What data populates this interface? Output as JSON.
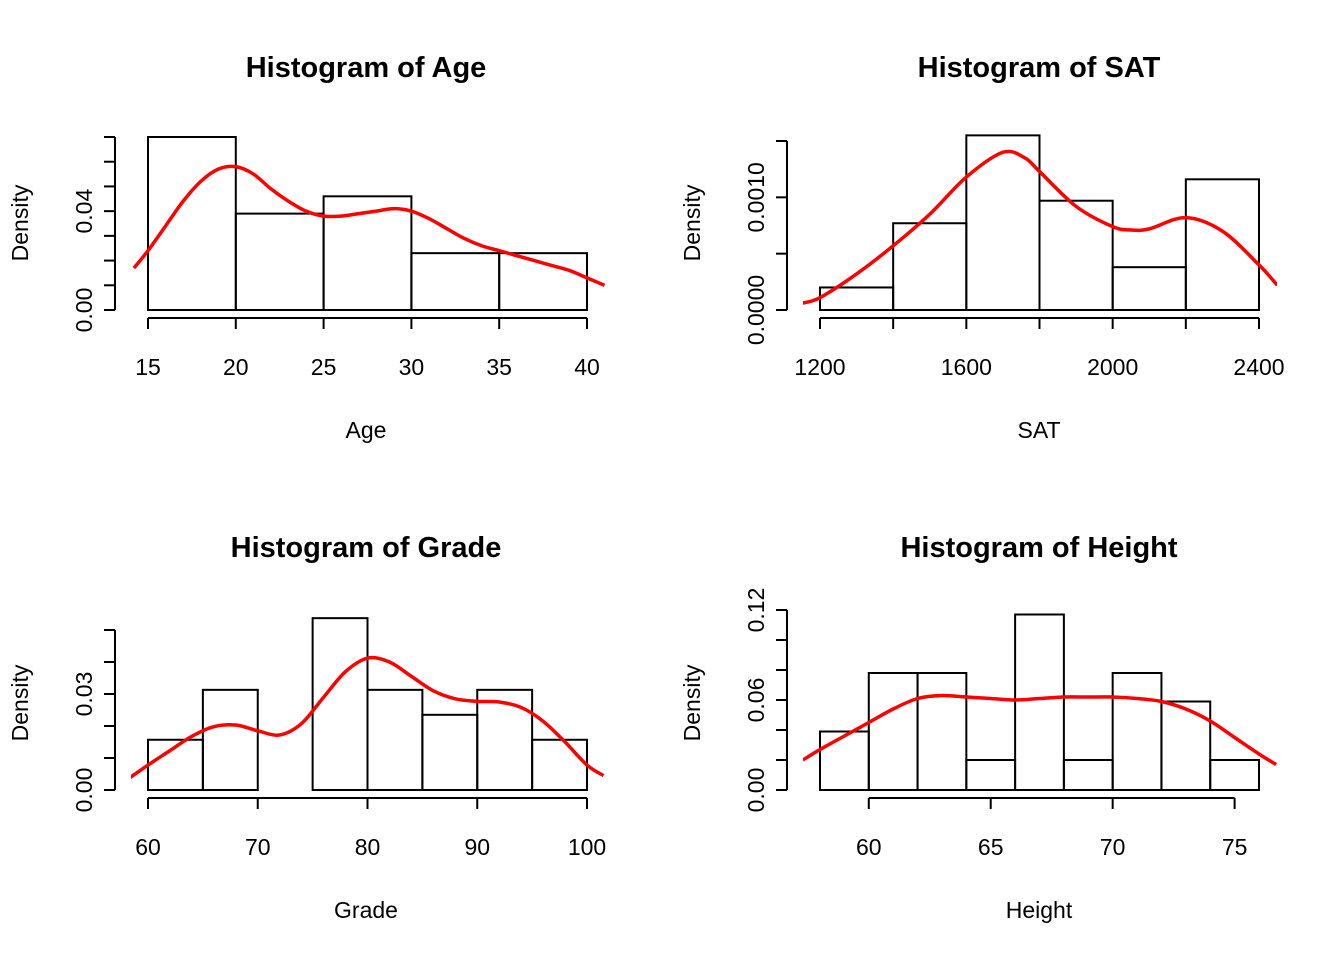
{
  "colors": {
    "density_curve": "#ff0000",
    "bars": "#000000",
    "background": "#ffffff"
  },
  "chart_data": [
    {
      "type": "bar",
      "subtype": "histogram-with-density",
      "title": "Histogram of Age",
      "xlabel": "Age",
      "ylabel": "Density",
      "bins": [
        [
          15,
          20
        ],
        [
          20,
          25
        ],
        [
          25,
          30
        ],
        [
          30,
          35
        ],
        [
          35,
          40
        ]
      ],
      "values": [
        0.07,
        0.039,
        0.046,
        0.023,
        0.023
      ],
      "xticks": [
        15,
        20,
        25,
        30,
        35,
        40
      ],
      "yticks": [
        0,
        0.01,
        0.02,
        0.03,
        0.04,
        0.05,
        0.06,
        0.07
      ],
      "ytick_labels": {
        "0": "0.00",
        "0.04": "0.04"
      },
      "xlim": [
        15,
        40
      ],
      "ylim": [
        0,
        0.07
      ],
      "density_curve": {
        "x": [
          14.2,
          15,
          16,
          17,
          18,
          19,
          20,
          21,
          22,
          23,
          24,
          25,
          26,
          27,
          28,
          29,
          30,
          31,
          32,
          33,
          34,
          35,
          36,
          37,
          38,
          39,
          40,
          41
        ],
        "y": [
          0.017,
          0.024,
          0.034,
          0.044,
          0.052,
          0.057,
          0.058,
          0.055,
          0.049,
          0.044,
          0.04,
          0.038,
          0.038,
          0.039,
          0.04,
          0.041,
          0.04,
          0.037,
          0.033,
          0.029,
          0.026,
          0.024,
          0.022,
          0.02,
          0.018,
          0.016,
          0.013,
          0.01
        ]
      }
    },
    {
      "type": "bar",
      "subtype": "histogram-with-density",
      "title": "Histogram of SAT",
      "xlabel": "SAT",
      "ylabel": "Density",
      "bins": [
        [
          1200,
          1400
        ],
        [
          1400,
          1600
        ],
        [
          1600,
          1800
        ],
        [
          1800,
          2000
        ],
        [
          2000,
          2200
        ],
        [
          2200,
          2400
        ]
      ],
      "values": [
        0.0002,
        0.00077,
        0.00155,
        0.00097,
        0.00038,
        0.00116
      ],
      "xticks": [
        1200,
        1400,
        1600,
        1800,
        2000,
        2200,
        2400
      ],
      "xtick_labels": {
        "1200": "1200",
        "1600": "1600",
        "2000": "2000",
        "2400": "2400"
      },
      "yticks": [
        0,
        0.0005,
        0.001,
        0.0015
      ],
      "ytick_labels": {
        "0": "0.0000",
        "0.001": "0.0010"
      },
      "xlim": [
        1200,
        2400
      ],
      "ylim": [
        0,
        0.0015
      ],
      "density_curve": {
        "x": [
          1150,
          1200,
          1300,
          1400,
          1500,
          1600,
          1700,
          1760,
          1800,
          1900,
          2000,
          2050,
          2100,
          2200,
          2300,
          2400,
          2450
        ],
        "y": [
          6e-05,
          0.00011,
          0.00032,
          0.00057,
          0.00085,
          0.00118,
          0.0014,
          0.00135,
          0.00123,
          0.00092,
          0.00074,
          0.00071,
          0.00072,
          0.00082,
          0.0007,
          0.0004,
          0.00022
        ]
      }
    },
    {
      "type": "bar",
      "subtype": "histogram-with-density",
      "title": "Histogram of Grade",
      "xlabel": "Grade",
      "ylabel": "Density",
      "bins": [
        [
          60,
          65
        ],
        [
          65,
          70
        ],
        [
          70,
          75
        ],
        [
          75,
          80
        ],
        [
          80,
          85
        ],
        [
          85,
          90
        ],
        [
          90,
          95
        ],
        [
          95,
          100
        ]
      ],
      "values": [
        0.0157,
        0.0313,
        0,
        0.0537,
        0.0313,
        0.0235,
        0.0313,
        0.0157
      ],
      "xticks": [
        60,
        70,
        80,
        90,
        100
      ],
      "yticks": [
        0,
        0.01,
        0.02,
        0.03,
        0.04,
        0.05
      ],
      "ytick_labels": {
        "0": "0.00",
        "0.03": "0.03"
      },
      "xlim": [
        60,
        100
      ],
      "ylim": [
        0,
        0.05
      ],
      "density_curve": {
        "x": [
          58.2,
          60,
          62,
          64,
          66,
          68,
          70,
          72,
          74,
          76,
          78,
          80,
          82,
          84,
          86,
          88,
          90,
          92,
          94,
          96,
          98,
          100,
          101.5
        ],
        "y": [
          0.0035,
          0.0078,
          0.0123,
          0.0168,
          0.0198,
          0.0203,
          0.0185,
          0.0172,
          0.0208,
          0.029,
          0.037,
          0.0412,
          0.04,
          0.0355,
          0.031,
          0.0285,
          0.0277,
          0.0275,
          0.0258,
          0.0215,
          0.015,
          0.0078,
          0.0045
        ]
      }
    },
    {
      "type": "bar",
      "subtype": "histogram-with-density",
      "title": "Histogram of Height",
      "xlabel": "Height",
      "ylabel": "Density",
      "bins": [
        [
          58,
          60
        ],
        [
          60,
          62
        ],
        [
          62,
          64
        ],
        [
          64,
          66
        ],
        [
          66,
          68
        ],
        [
          68,
          70
        ],
        [
          70,
          72
        ],
        [
          72,
          74
        ],
        [
          74,
          76
        ]
      ],
      "values": [
        0.039,
        0.078,
        0.078,
        0.02,
        0.117,
        0.02,
        0.078,
        0.059,
        0.02
      ],
      "xticks": [
        60,
        65,
        70,
        75
      ],
      "yticks": [
        0,
        0.02,
        0.04,
        0.06,
        0.08,
        0.1,
        0.12
      ],
      "ytick_labels": {
        "0": "0.00",
        "0.06": "0.06",
        "0.12": "0.12"
      },
      "xlim": [
        58,
        76
      ],
      "ylim": [
        0,
        0.12
      ],
      "density_curve": {
        "x": [
          57.3,
          58,
          59,
          60,
          61,
          62,
          63,
          64,
          65,
          66,
          67,
          68,
          69,
          70,
          71,
          72,
          73,
          74,
          75,
          76,
          76.7
        ],
        "y": [
          0.02,
          0.027,
          0.036,
          0.045,
          0.054,
          0.061,
          0.063,
          0.062,
          0.061,
          0.06,
          0.061,
          0.062,
          0.062,
          0.062,
          0.061,
          0.059,
          0.054,
          0.046,
          0.035,
          0.024,
          0.017
        ]
      }
    }
  ]
}
